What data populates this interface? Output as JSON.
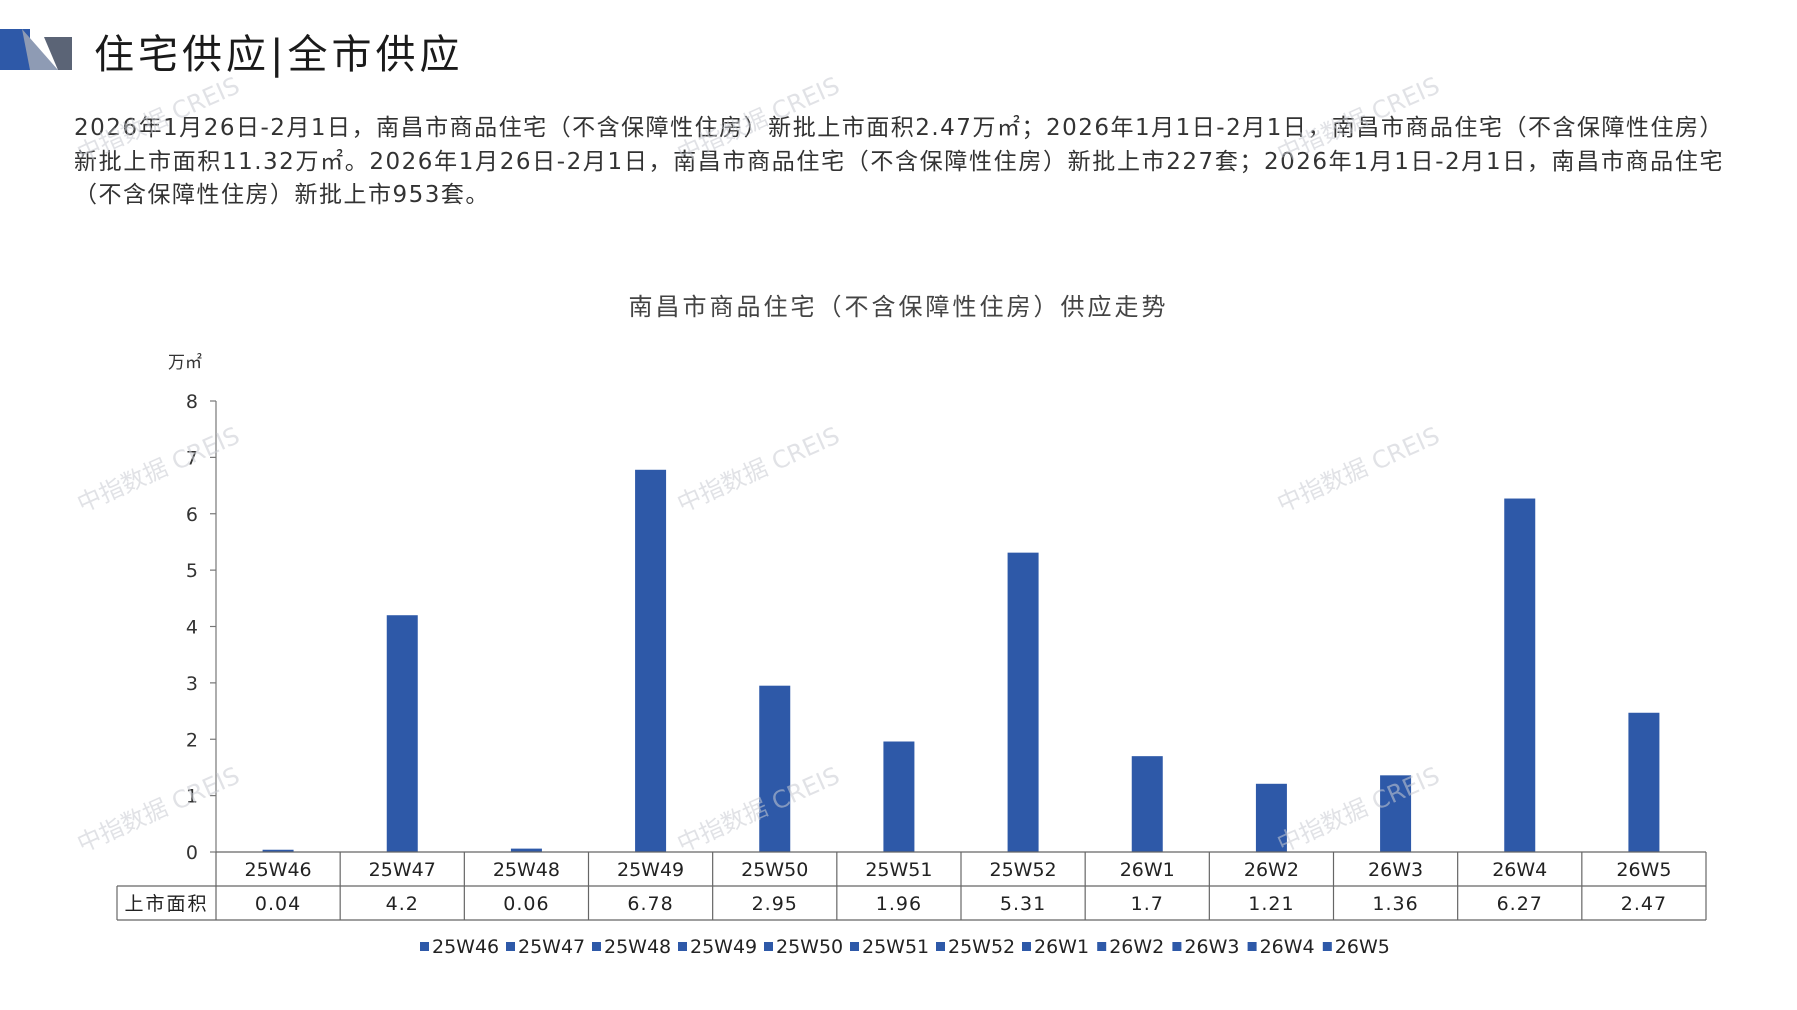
{
  "header": {
    "title": "住宅供应|全市供应",
    "accent_color": "#2e59a8"
  },
  "summary": "2026年1月26日-2月1日，南昌市商品住宅（不含保障性住房）新批上市面积2.47万㎡；2026年1月1日-2月1日，南昌市商品住宅（不含保障性住房）新批上市面积11.32万㎡。2026年1月26日-2月1日，南昌市商品住宅（不含保障性住房）新批上市227套；2026年1月1日-2月1日，南昌市商品住宅（不含保障性住房）新批上市953套。",
  "watermark": "中指数据 CREIS",
  "chart_data": {
    "type": "bar",
    "title": "南昌市商品住宅（不含保障性住房）供应走势",
    "ylabel": "万㎡",
    "ylim": [
      0,
      8
    ],
    "yticks": [
      "0",
      "1",
      "2",
      "3",
      "4",
      "5",
      "6",
      "7",
      "8"
    ],
    "categories": [
      "25W46",
      "25W47",
      "25W48",
      "25W49",
      "25W50",
      "25W51",
      "25W52",
      "26W1",
      "26W2",
      "26W3",
      "26W4",
      "26W5"
    ],
    "values": [
      0.04,
      4.2,
      0.06,
      6.78,
      2.95,
      1.96,
      5.31,
      1.7,
      1.21,
      1.36,
      6.27,
      2.47
    ],
    "value_labels": [
      "0.04",
      "4.2",
      "0.06",
      "6.78",
      "2.95",
      "1.96",
      "5.31",
      "1.7",
      "1.21",
      "1.36",
      "6.27",
      "2.47"
    ],
    "series_name": "上市面积",
    "legend_entries": [
      "25W46",
      "25W47",
      "25W48",
      "25W49",
      "25W50",
      "25W51",
      "25W52",
      "26W1",
      "26W2",
      "26W3",
      "26W4",
      "26W5"
    ],
    "legend_position": "bottom",
    "bar_color": "#2e59a8",
    "data_table": true,
    "grid": false
  }
}
